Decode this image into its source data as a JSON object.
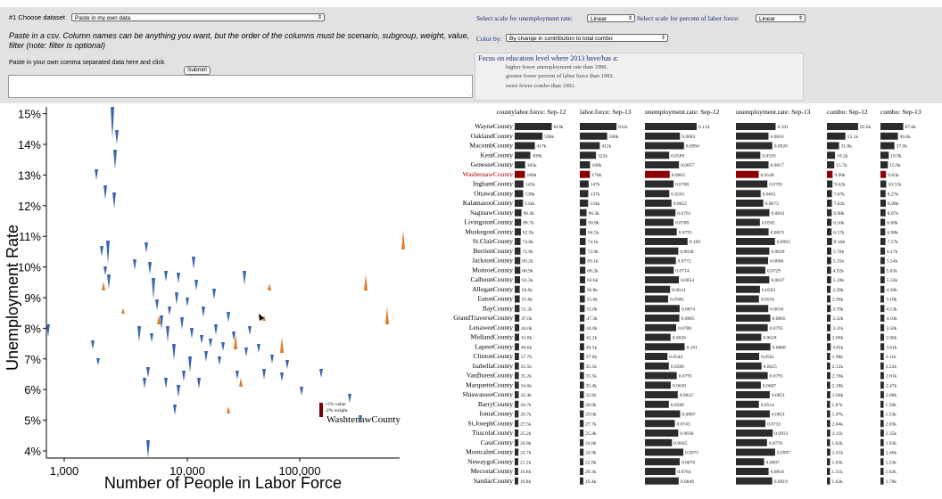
{
  "controls": {
    "choose_dataset_label": "#1 Choose dataset",
    "dataset_value": "Paste in my own data",
    "instructions": "Paste in a csv. Column names can be anything you want, but the order of the columns must be scenario, subgroup, weight, value, filter (note: filter is optional)",
    "paste_label": "Paste in your own comma separated data here and click",
    "submit_label": "Submit!",
    "csv_value": "",
    "unemp_scale_label": "Select scale for unemployment rate:",
    "unemp_scale_value": "Linear",
    "labor_scale_label": "Select scale for percent of labor force:",
    "labor_scale_value": "Linear",
    "color_by_label": "Color by:",
    "color_by_value": "By change in contribution to total combo",
    "focus_title": "Focus on education level where 2013 have/has a:",
    "focus_lines": [
      "higher  fewer  unemployment rate than 1990.",
      "greater  fewer  percent of labor force than 1992.",
      "more  fewer  combo than 1992."
    ]
  },
  "scatter": {
    "ylabel": "Unemployment Rate",
    "xlabel": "Number of People in Labor Force",
    "y_ticks": [
      "4%",
      "5%",
      "6%",
      "7%",
      "8%",
      "9%",
      "10%",
      "11%",
      "12%",
      "13%",
      "14%",
      "15%"
    ],
    "x_ticks": [
      "1,000",
      "10,000",
      "100,000"
    ],
    "legend_value_text": "+5% value",
    "legend_weight_text": "-2% weight",
    "highlight_label": "WashtenawCounty",
    "colors": {
      "blue": "#3a66b0",
      "orange": "#e07a26",
      "highlight": "#7a0000"
    }
  },
  "table": {
    "headers": [
      "county",
      "labor.force: Sep-12",
      "labor.force: Sep-13",
      "unemployment.rate: Sep-12",
      "unemployment.rate: Sep-13",
      "combo: Sep-12",
      "combo: Sep-13"
    ],
    "highlight_county": "WashtenawCounty",
    "counties": [
      "WayneCounty",
      "OaklandCounty",
      "MacombCounty",
      "KentCounty",
      "GeneseeCounty",
      "WashtenawCounty",
      "InghamCounty",
      "OttawaCounty",
      "KalamazooCounty",
      "SaginawCounty",
      "LivingstonCounty",
      "MuskegonCounty",
      "St.ClairCounty",
      "BerrienCounty",
      "JacksonCounty",
      "MonroeCounty",
      "CalhounCounty",
      "AlleganCounty",
      "EatonCounty",
      "BayCounty",
      "GrandTraverseCounty",
      "LenaweeCounty",
      "MidlandCounty",
      "LapeerCounty",
      "ClintonCounty",
      "IsabellaCounty",
      "VanBurenCounty",
      "MarquetteCounty",
      "ShiawasseeCounty",
      "BarryCounty",
      "IoniaCounty",
      "St.JosephCounty",
      "TuscolaCounty",
      "CassCounty",
      "MontcalmCounty",
      "NewaygoCounty",
      "MecostaCounty",
      "SanilacCounty"
    ],
    "col_labor12": [
      "819k",
      "598k",
      "417k",
      "309k",
      "185k",
      "180k",
      "145k",
      "138k",
      "134k",
      "96.4k",
      "88.7k",
      "82.9k",
      "74.8k",
      "72.9k",
      "69.2k",
      "68.9k",
      "63.3k",
      "56.6k",
      "55.6k",
      "51.2k",
      "47.0k",
      "44.0k",
      "41.8k",
      "40.6k",
      "37.7k",
      "35.5k",
      "35.2k",
      "34.6k",
      "32.4k",
      "28.7k",
      "28.7k",
      "27.5k",
      "25.2k",
      "24.8k",
      "24.7k",
      "21.2k",
      "19.8k",
      "19.8k"
    ],
    "col_labor13": [
      "811k",
      "588k",
      "412k",
      "322k",
      "180k",
      "176k",
      "147k",
      "137k",
      "134k",
      "96.3k",
      "90.8k",
      "84.5k",
      "74.1k",
      "72.9k",
      "69.1k",
      "68.2k",
      "63.6k",
      "56.8k",
      "55.6k",
      "51.0k",
      "47.3k",
      "44.0k",
      "42.2k",
      "40.5k",
      "37.6k",
      "35.5k",
      "35.5k",
      "35.4k",
      "32.6k",
      "28.9k",
      "29.0k",
      "27.7k",
      "25.4k",
      "24.8k",
      "24.9k",
      "22.0k",
      "20.3k",
      "19.4k"
    ],
    "col_unemp12": [
      "0.134",
      "0.0883",
      "0.0994",
      "0.0589",
      "0.0857",
      "0.0603",
      "0.0708",
      "0.0591",
      "0.0652",
      "0.0761",
      "0.0708",
      "0.0795",
      "0.109",
      "0.0838",
      "0.0772",
      "0.0714",
      "0.0854",
      "0.0614",
      "0.0560",
      "0.0874",
      "0.0865",
      "0.0780",
      "0.0626",
      "0.101",
      "0.0542",
      "0.0580",
      "0.0795",
      "0.0630",
      "0.0822",
      "0.0580",
      "0.0887",
      "0.0743",
      "0.0836",
      "0.0665",
      "0.0975",
      "0.0876",
      "0.0764",
      "0.0849"
    ],
    "col_unemp13": [
      "0.101",
      "0.0816",
      "0.0920",
      "0.0593",
      "0.0817",
      "0.0548",
      "0.0785",
      "0.0601",
      "0.0673",
      "0.0841",
      "0.0581",
      "0.0819",
      "0.0992",
      "0.0839",
      "0.0806",
      "0.0729",
      "0.0837",
      "0.0583",
      "0.0556",
      "0.0810",
      "0.0865",
      "0.0795",
      "0.0618",
      "0.0868",
      "0.0561",
      "0.0625",
      "0.0795",
      "0.0607",
      "0.0851",
      "0.0554",
      "0.0851",
      "0.0733",
      "0.0933",
      "0.0776",
      "0.0997",
      "0.0697",
      "0.0818",
      "0.0919"
    ],
    "col_combo12": [
      "95.6k",
      "53.1k",
      "31.8k",
      "18.2k",
      "15.7k",
      "9.96k",
      "9.62k",
      "7.67k",
      "7.62k",
      "6.98k",
      "6.56k",
      "6.57k",
      "8.10k",
      "5.70k",
      "5.35k",
      "4.92k",
      "5.18k",
      "3.39k",
      "2.96k",
      "3.70k",
      "3.32k",
      "3.31k",
      "2.60k",
      "3.81k",
      "1.98k",
      "2.12k",
      "2.76k",
      "2.18k",
      "2.66k",
      "1.67k",
      "1.97k",
      "2.04k",
      "2.11k",
      "1.62k",
      "2.41k",
      "1.63k",
      "1.51k",
      "1.63k"
    ],
    "col_combo13": [
      "67.6k",
      "49.6k",
      "37.9k",
      "18.9k",
      "15.9k",
      "9.65k",
      "10.51k",
      "8.27k",
      "8.98k",
      "8.07k",
      "6.60k",
      "6.98k",
      "7.57k",
      "6.17k",
      "5.54k",
      "5.03k",
      "5.33k",
      "4.38k",
      "3.10k",
      "4.13k",
      "4.10k",
      "3.50k",
      "2.86k",
      "3.61k",
      "2.11k",
      "2.22k",
      "2.81k",
      "2.47k",
      "2.68k",
      "1.58k",
      "1.53k",
      "2.03k",
      "2.35k",
      "1.93k",
      "2.46k",
      "1.53k",
      "1.62k",
      "1.78k"
    ]
  }
}
